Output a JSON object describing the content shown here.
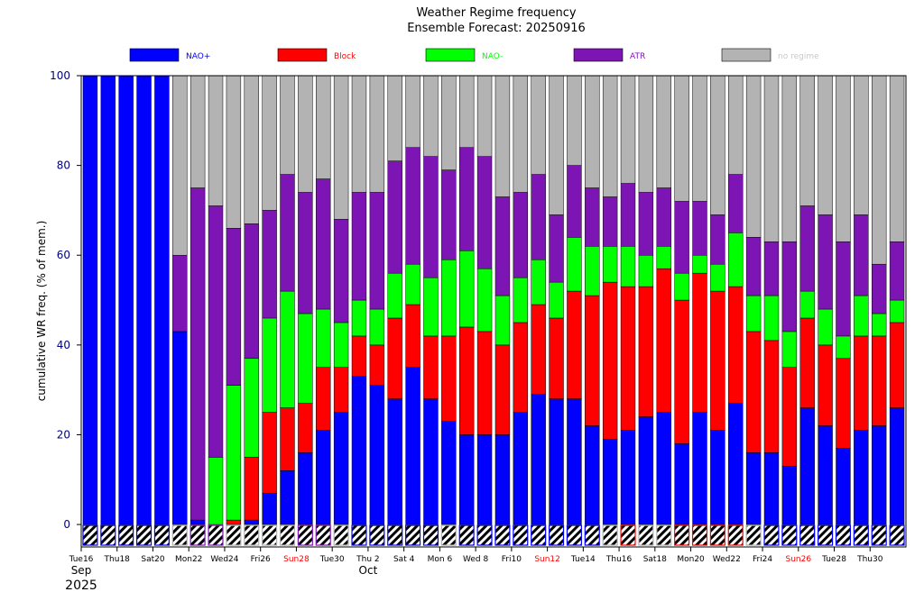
{
  "chart_data": {
    "type": "bar",
    "stacked": true,
    "title": "Weather Regime frequency",
    "subtitle": "Ensemble Forecast: 20250916",
    "xlabel": "",
    "ylabel": "cumulative WR freq. (% of mem.)",
    "ylim": [
      -5,
      100
    ],
    "yticks": [
      0,
      20,
      40,
      60,
      80,
      100
    ],
    "colors": {
      "NAO+": "#0000ff",
      "Block": "#ff0000",
      "NAO-": "#00ff00",
      "ATR": "#7d15b5",
      "no regime": "#b3b3b3",
      "legend_text_no_regime": "#c8c8c8",
      "weekend_tick": "#ff0000",
      "weekday_tick": "#000000",
      "axis_tick_label": "#000080"
    },
    "legend": [
      {
        "key": "NAO+",
        "label": "NAO+"
      },
      {
        "key": "Block",
        "label": "Block"
      },
      {
        "key": "NAO-",
        "label": "NAO-"
      },
      {
        "key": "ATR",
        "label": "ATR"
      },
      {
        "key": "no regime",
        "label": "no regime"
      }
    ],
    "x_tick_labels": [
      {
        "label": "Tue16",
        "weekend": false
      },
      {
        "label": "Thu18",
        "weekend": false
      },
      {
        "label": "Sat20",
        "weekend": false
      },
      {
        "label": "Mon22",
        "weekend": false
      },
      {
        "label": "Wed24",
        "weekend": false
      },
      {
        "label": "Fri26",
        "weekend": false
      },
      {
        "label": "Sun28",
        "weekend": true
      },
      {
        "label": "Tue30",
        "weekend": false
      },
      {
        "label": "Thu 2",
        "weekend": false
      },
      {
        "label": "Sat 4",
        "weekend": false
      },
      {
        "label": "Mon 6",
        "weekend": false
      },
      {
        "label": "Wed 8",
        "weekend": false
      },
      {
        "label": "Fri10",
        "weekend": false
      },
      {
        "label": "Sun12",
        "weekend": true
      },
      {
        "label": "Tue14",
        "weekend": false
      },
      {
        "label": "Thu16",
        "weekend": false
      },
      {
        "label": "Sat18",
        "weekend": false
      },
      {
        "label": "Mon20",
        "weekend": false
      },
      {
        "label": "Wed22",
        "weekend": false
      },
      {
        "label": "Fri24",
        "weekend": false
      },
      {
        "label": "Sun26",
        "weekend": true
      },
      {
        "label": "Tue28",
        "weekend": false
      },
      {
        "label": "Thu30",
        "weekend": false
      }
    ],
    "month_labels": [
      {
        "label": "Sep",
        "at_day_index": 0
      },
      {
        "label": "Oct",
        "at_day_index": 16
      }
    ],
    "year_label": "2025",
    "series_order": [
      "NAO+",
      "Block",
      "NAO-",
      "ATR",
      "no regime"
    ],
    "days": [
      {
        "NAO+": 100,
        "Block": 0,
        "NAO-": 0,
        "ATR": 0,
        "dominant": "NAO+"
      },
      {
        "NAO+": 100,
        "Block": 0,
        "NAO-": 0,
        "ATR": 0,
        "dominant": "NAO+"
      },
      {
        "NAO+": 100,
        "Block": 0,
        "NAO-": 0,
        "ATR": 0,
        "dominant": "NAO+"
      },
      {
        "NAO+": 100,
        "Block": 0,
        "NAO-": 0,
        "ATR": 0,
        "dominant": "NAO+"
      },
      {
        "NAO+": 100,
        "Block": 0,
        "NAO-": 0,
        "ATR": 0,
        "dominant": "NAO+"
      },
      {
        "NAO+": 43,
        "Block": 0,
        "NAO-": 0,
        "ATR": 17,
        "dominant": "no regime"
      },
      {
        "NAO+": 1,
        "Block": 0,
        "NAO-": 0,
        "ATR": 74,
        "dominant": "ATR"
      },
      {
        "NAO+": 0,
        "Block": 0,
        "NAO-": 15,
        "ATR": 56,
        "dominant": "ATR"
      },
      {
        "NAO+": 0,
        "Block": 1,
        "NAO-": 30,
        "ATR": 35,
        "dominant": "no regime"
      },
      {
        "NAO+": 1,
        "Block": 14,
        "NAO-": 22,
        "ATR": 30,
        "dominant": "no regime"
      },
      {
        "NAO+": 7,
        "Block": 18,
        "NAO-": 21,
        "ATR": 24,
        "dominant": "no regime"
      },
      {
        "NAO+": 12,
        "Block": 14,
        "NAO-": 26,
        "ATR": 26,
        "dominant": "no regime"
      },
      {
        "NAO+": 16,
        "Block": 11,
        "NAO-": 20,
        "ATR": 27,
        "dominant": "ATR"
      },
      {
        "NAO+": 21,
        "Block": 14,
        "NAO-": 13,
        "ATR": 29,
        "dominant": "ATR"
      },
      {
        "NAO+": 25,
        "Block": 10,
        "NAO-": 10,
        "ATR": 23,
        "dominant": "no regime"
      },
      {
        "NAO+": 33,
        "Block": 9,
        "NAO-": 8,
        "ATR": 24,
        "dominant": "NAO+"
      },
      {
        "NAO+": 31,
        "Block": 9,
        "NAO-": 8,
        "ATR": 26,
        "dominant": "NAO+"
      },
      {
        "NAO+": 28,
        "Block": 18,
        "NAO-": 10,
        "ATR": 25,
        "dominant": "NAO+"
      },
      {
        "NAO+": 35,
        "Block": 14,
        "NAO-": 9,
        "ATR": 26,
        "dominant": "NAO+"
      },
      {
        "NAO+": 28,
        "Block": 14,
        "NAO-": 13,
        "ATR": 27,
        "dominant": "NAO+"
      },
      {
        "NAO+": 23,
        "Block": 19,
        "NAO-": 17,
        "ATR": 20,
        "dominant": "no regime"
      },
      {
        "NAO+": 20,
        "Block": 24,
        "NAO-": 17,
        "ATR": 23,
        "dominant": "NAO+"
      },
      {
        "NAO+": 20,
        "Block": 23,
        "NAO-": 14,
        "ATR": 25,
        "dominant": "NAO+"
      },
      {
        "NAO+": 20,
        "Block": 20,
        "NAO-": 11,
        "ATR": 22,
        "dominant": "NAO+"
      },
      {
        "NAO+": 25,
        "Block": 20,
        "NAO-": 10,
        "ATR": 19,
        "dominant": "NAO+"
      },
      {
        "NAO+": 29,
        "Block": 20,
        "NAO-": 10,
        "ATR": 19,
        "dominant": "NAO+"
      },
      {
        "NAO+": 28,
        "Block": 18,
        "NAO-": 8,
        "ATR": 15,
        "dominant": "NAO+"
      },
      {
        "NAO+": 28,
        "Block": 24,
        "NAO-": 12,
        "ATR": 16,
        "dominant": "NAO+"
      },
      {
        "NAO+": 22,
        "Block": 29,
        "NAO-": 11,
        "ATR": 13,
        "dominant": "NAO+"
      },
      {
        "NAO+": 19,
        "Block": 35,
        "NAO-": 8,
        "ATR": 11,
        "dominant": "no regime"
      },
      {
        "NAO+": 21,
        "Block": 32,
        "NAO-": 9,
        "ATR": 14,
        "dominant": "Block"
      },
      {
        "NAO+": 24,
        "Block": 29,
        "NAO-": 7,
        "ATR": 14,
        "dominant": "no regime"
      },
      {
        "NAO+": 25,
        "Block": 32,
        "NAO-": 5,
        "ATR": 13,
        "dominant": "no regime"
      },
      {
        "NAO+": 18,
        "Block": 32,
        "NAO-": 6,
        "ATR": 16,
        "dominant": "Block"
      },
      {
        "NAO+": 25,
        "Block": 31,
        "NAO-": 4,
        "ATR": 12,
        "dominant": "Block"
      },
      {
        "NAO+": 21,
        "Block": 31,
        "NAO-": 6,
        "ATR": 11,
        "dominant": "Block"
      },
      {
        "NAO+": 27,
        "Block": 26,
        "NAO-": 12,
        "ATR": 13,
        "dominant": "Block"
      },
      {
        "NAO+": 16,
        "Block": 27,
        "NAO-": 8,
        "ATR": 13,
        "dominant": "no regime"
      },
      {
        "NAO+": 16,
        "Block": 25,
        "NAO-": 10,
        "ATR": 12,
        "dominant": "NAO+"
      },
      {
        "NAO+": 13,
        "Block": 22,
        "NAO-": 8,
        "ATR": 20,
        "dominant": "NAO+"
      },
      {
        "NAO+": 26,
        "Block": 20,
        "NAO-": 6,
        "ATR": 19,
        "dominant": "NAO+"
      },
      {
        "NAO+": 22,
        "Block": 18,
        "NAO-": 8,
        "ATR": 21,
        "dominant": "NAO+"
      },
      {
        "NAO+": 17,
        "Block": 20,
        "NAO-": 5,
        "ATR": 21,
        "dominant": "NAO+"
      },
      {
        "NAO+": 21,
        "Block": 21,
        "NAO-": 9,
        "ATR": 18,
        "dominant": "NAO+"
      },
      {
        "NAO+": 22,
        "Block": 20,
        "NAO-": 5,
        "ATR": 11,
        "dominant": "NAO+"
      },
      {
        "NAO+": 26,
        "Block": 19,
        "NAO-": 5,
        "ATR": 13,
        "dominant": "NAO+"
      }
    ]
  }
}
